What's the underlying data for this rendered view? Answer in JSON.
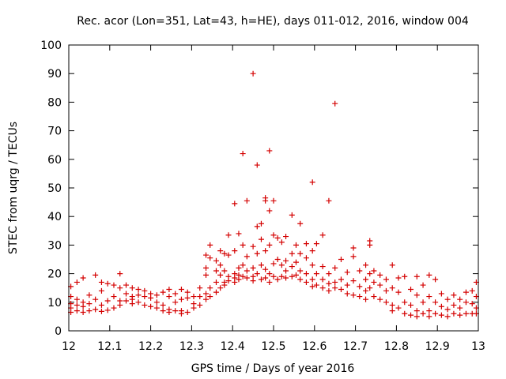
{
  "chart_data": {
    "type": "scatter",
    "title": "Rec. acor (Lon=351, Lat=43, h=HE), days 011-012, 2016, window 004",
    "xlabel": "GPS time / Days of year 2016",
    "ylabel": "STEC from uqrg / TECUs",
    "xlim": [
      12,
      13
    ],
    "ylim": [
      0,
      100
    ],
    "xticks": [
      "12",
      "12.1",
      "12.2",
      "12.3",
      "12.4",
      "12.5",
      "12.6",
      "12.7",
      "12.8",
      "12.9",
      "13"
    ],
    "yticks": [
      "0",
      "10",
      "20",
      "30",
      "40",
      "50",
      "60",
      "70",
      "80",
      "90",
      "100"
    ],
    "grid": false,
    "marker": "plus",
    "color": "#d40000",
    "series": [
      {
        "points": [
          [
            12.005,
            15.5
          ],
          [
            12.005,
            12.0
          ],
          [
            12.005,
            9.5
          ],
          [
            12.005,
            8.0
          ],
          [
            12.005,
            6.5
          ],
          [
            12.02,
            17.0
          ],
          [
            12.02,
            11.0
          ],
          [
            12.02,
            9.0
          ],
          [
            12.02,
            7.0
          ],
          [
            12.035,
            18.5
          ],
          [
            12.035,
            10.0
          ],
          [
            12.035,
            8.5
          ],
          [
            12.035,
            6.5
          ],
          [
            12.05,
            12.5
          ],
          [
            12.05,
            9.5
          ],
          [
            12.05,
            7.0
          ],
          [
            12.065,
            19.5
          ],
          [
            12.065,
            11.0
          ],
          [
            12.065,
            7.5
          ],
          [
            12.08,
            17.0
          ],
          [
            12.08,
            14.0
          ],
          [
            12.08,
            9.0
          ],
          [
            12.08,
            6.8
          ],
          [
            12.095,
            16.5
          ],
          [
            12.095,
            10.5
          ],
          [
            12.095,
            7.2
          ],
          [
            12.11,
            16.0
          ],
          [
            12.11,
            12.0
          ],
          [
            12.11,
            8.0
          ],
          [
            12.125,
            20.0
          ],
          [
            12.125,
            15.0
          ],
          [
            12.125,
            10.5
          ],
          [
            12.125,
            9.0
          ],
          [
            12.14,
            16.0
          ],
          [
            12.14,
            13.0
          ],
          [
            12.14,
            10.5
          ],
          [
            12.155,
            15.0
          ],
          [
            12.155,
            12.0
          ],
          [
            12.155,
            11.0
          ],
          [
            12.155,
            9.5
          ],
          [
            12.17,
            14.5
          ],
          [
            12.17,
            12.5
          ],
          [
            12.17,
            10.0
          ],
          [
            12.185,
            14.0
          ],
          [
            12.185,
            12.0
          ],
          [
            12.185,
            9.0
          ],
          [
            12.2,
            13.0
          ],
          [
            12.2,
            11.5
          ],
          [
            12.2,
            8.5
          ],
          [
            12.215,
            12.5
          ],
          [
            12.215,
            10.0
          ],
          [
            12.215,
            8.0
          ],
          [
            12.23,
            13.5
          ],
          [
            12.23,
            9.0
          ],
          [
            12.23,
            7.0
          ],
          [
            12.245,
            14.5
          ],
          [
            12.245,
            12.0
          ],
          [
            12.245,
            7.5
          ],
          [
            12.245,
            6.5
          ],
          [
            12.26,
            13.0
          ],
          [
            12.26,
            10.0
          ],
          [
            12.26,
            7.0
          ],
          [
            12.275,
            14.5
          ],
          [
            12.275,
            11.0
          ],
          [
            12.275,
            7.0
          ],
          [
            12.275,
            6.0
          ],
          [
            12.29,
            13.5
          ],
          [
            12.29,
            11.5
          ],
          [
            12.29,
            6.5
          ],
          [
            12.305,
            12.0
          ],
          [
            12.305,
            9.5
          ],
          [
            12.305,
            8.0
          ],
          [
            12.32,
            15.0
          ],
          [
            12.32,
            12.0
          ],
          [
            12.32,
            9.0
          ],
          [
            12.335,
            26.5
          ],
          [
            12.335,
            22.0
          ],
          [
            12.335,
            19.5
          ],
          [
            12.335,
            13.0
          ],
          [
            12.335,
            11.0
          ],
          [
            12.345,
            30.0
          ],
          [
            12.345,
            25.5
          ],
          [
            12.345,
            15.0
          ],
          [
            12.345,
            12.0
          ],
          [
            12.36,
            24.5
          ],
          [
            12.36,
            21.0
          ],
          [
            12.36,
            17.0
          ],
          [
            12.36,
            13.5
          ],
          [
            12.37,
            28.0
          ],
          [
            12.37,
            23.0
          ],
          [
            12.37,
            19.5
          ],
          [
            12.37,
            15.0
          ],
          [
            12.38,
            27.0
          ],
          [
            12.38,
            21.0
          ],
          [
            12.38,
            17.0
          ],
          [
            12.38,
            16.0
          ],
          [
            12.39,
            33.5
          ],
          [
            12.39,
            26.5
          ],
          [
            12.39,
            19.0
          ],
          [
            12.39,
            17.5
          ],
          [
            12.405,
            44.5
          ],
          [
            12.405,
            28.0
          ],
          [
            12.405,
            20.0
          ],
          [
            12.405,
            18.5
          ],
          [
            12.405,
            17.0
          ],
          [
            12.415,
            34.0
          ],
          [
            12.415,
            22.0
          ],
          [
            12.415,
            19.5
          ],
          [
            12.415,
            18.0
          ],
          [
            12.425,
            62.0
          ],
          [
            12.425,
            30.0
          ],
          [
            12.425,
            23.0
          ],
          [
            12.425,
            19.0
          ],
          [
            12.435,
            45.5
          ],
          [
            12.435,
            26.0
          ],
          [
            12.435,
            21.0
          ],
          [
            12.435,
            18.5
          ],
          [
            12.45,
            90.0
          ],
          [
            12.45,
            29.5
          ],
          [
            12.45,
            22.0
          ],
          [
            12.45,
            19.0
          ],
          [
            12.45,
            17.5
          ],
          [
            12.46,
            58.0
          ],
          [
            12.46,
            36.5
          ],
          [
            12.46,
            27.0
          ],
          [
            12.46,
            20.0
          ],
          [
            12.47,
            37.5
          ],
          [
            12.47,
            32.0
          ],
          [
            12.47,
            23.0
          ],
          [
            12.47,
            18.0
          ],
          [
            12.48,
            46.5
          ],
          [
            12.48,
            45.5
          ],
          [
            12.48,
            28.0
          ],
          [
            12.48,
            21.5
          ],
          [
            12.48,
            18.5
          ],
          [
            12.49,
            63.0
          ],
          [
            12.49,
            42.0
          ],
          [
            12.49,
            30.0
          ],
          [
            12.49,
            20.0
          ],
          [
            12.49,
            17.0
          ],
          [
            12.5,
            45.5
          ],
          [
            12.5,
            33.5
          ],
          [
            12.5,
            23.5
          ],
          [
            12.5,
            19.0
          ],
          [
            12.51,
            32.5
          ],
          [
            12.51,
            25.0
          ],
          [
            12.51,
            18.0
          ],
          [
            12.52,
            31.0
          ],
          [
            12.52,
            23.0
          ],
          [
            12.52,
            19.0
          ],
          [
            12.53,
            33.0
          ],
          [
            12.53,
            24.5
          ],
          [
            12.53,
            21.0
          ],
          [
            12.53,
            18.5
          ],
          [
            12.545,
            40.5
          ],
          [
            12.545,
            27.0
          ],
          [
            12.545,
            22.5
          ],
          [
            12.545,
            19.0
          ],
          [
            12.555,
            30.0
          ],
          [
            12.555,
            24.0
          ],
          [
            12.555,
            19.5
          ],
          [
            12.565,
            37.5
          ],
          [
            12.565,
            27.0
          ],
          [
            12.565,
            21.0
          ],
          [
            12.565,
            18.0
          ],
          [
            12.58,
            30.5
          ],
          [
            12.58,
            25.5
          ],
          [
            12.58,
            20.0
          ],
          [
            12.58,
            17.0
          ],
          [
            12.595,
            52.0
          ],
          [
            12.595,
            28.0
          ],
          [
            12.595,
            23.0
          ],
          [
            12.595,
            18.0
          ],
          [
            12.595,
            15.5
          ],
          [
            12.605,
            30.5
          ],
          [
            12.605,
            20.0
          ],
          [
            12.605,
            16.0
          ],
          [
            12.62,
            33.5
          ],
          [
            12.62,
            22.5
          ],
          [
            12.62,
            18.0
          ],
          [
            12.62,
            15.0
          ],
          [
            12.635,
            45.5
          ],
          [
            12.635,
            20.0
          ],
          [
            12.635,
            16.5
          ],
          [
            12.635,
            14.0
          ],
          [
            12.65,
            79.5
          ],
          [
            12.65,
            22.0
          ],
          [
            12.65,
            17.0
          ],
          [
            12.65,
            15.0
          ],
          [
            12.665,
            25.0
          ],
          [
            12.665,
            18.0
          ],
          [
            12.665,
            14.5
          ],
          [
            12.68,
            20.5
          ],
          [
            12.68,
            16.0
          ],
          [
            12.68,
            13.0
          ],
          [
            12.695,
            29.0
          ],
          [
            12.695,
            26.0
          ],
          [
            12.695,
            17.5
          ],
          [
            12.695,
            12.5
          ],
          [
            12.71,
            21.0
          ],
          [
            12.71,
            15.5
          ],
          [
            12.71,
            12.0
          ],
          [
            12.725,
            23.0
          ],
          [
            12.725,
            18.0
          ],
          [
            12.725,
            14.0
          ],
          [
            12.725,
            11.0
          ],
          [
            12.735,
            31.5
          ],
          [
            12.735,
            30.0
          ],
          [
            12.735,
            20.0
          ],
          [
            12.735,
            15.0
          ],
          [
            12.745,
            21.0
          ],
          [
            12.745,
            17.0
          ],
          [
            12.745,
            12.0
          ],
          [
            12.76,
            19.5
          ],
          [
            12.76,
            16.0
          ],
          [
            12.76,
            11.0
          ],
          [
            12.775,
            18.0
          ],
          [
            12.775,
            14.0
          ],
          [
            12.775,
            10.0
          ],
          [
            12.79,
            23.0
          ],
          [
            12.79,
            15.0
          ],
          [
            12.79,
            9.0
          ],
          [
            12.79,
            7.0
          ],
          [
            12.805,
            18.5
          ],
          [
            12.805,
            13.5
          ],
          [
            12.805,
            8.0
          ],
          [
            12.82,
            19.0
          ],
          [
            12.82,
            10.0
          ],
          [
            12.82,
            6.0
          ],
          [
            12.835,
            14.5
          ],
          [
            12.835,
            9.0
          ],
          [
            12.835,
            5.5
          ],
          [
            12.85,
            19.0
          ],
          [
            12.85,
            12.5
          ],
          [
            12.85,
            7.0
          ],
          [
            12.85,
            5.0
          ],
          [
            12.865,
            16.0
          ],
          [
            12.865,
            10.0
          ],
          [
            12.865,
            6.0
          ],
          [
            12.88,
            19.5
          ],
          [
            12.88,
            12.0
          ],
          [
            12.88,
            7.0
          ],
          [
            12.88,
            5.0
          ],
          [
            12.895,
            18.0
          ],
          [
            12.895,
            10.0
          ],
          [
            12.895,
            6.0
          ],
          [
            12.91,
            13.0
          ],
          [
            12.91,
            8.5
          ],
          [
            12.91,
            5.5
          ],
          [
            12.925,
            11.0
          ],
          [
            12.925,
            7.5
          ],
          [
            12.925,
            5.0
          ],
          [
            12.94,
            12.5
          ],
          [
            12.94,
            9.0
          ],
          [
            12.94,
            6.0
          ],
          [
            12.955,
            11.0
          ],
          [
            12.955,
            8.0
          ],
          [
            12.955,
            5.5
          ],
          [
            12.97,
            13.5
          ],
          [
            12.97,
            10.0
          ],
          [
            12.97,
            6.0
          ],
          [
            12.985,
            14.0
          ],
          [
            12.985,
            9.5
          ],
          [
            12.985,
            6.0
          ],
          [
            12.995,
            17.0
          ],
          [
            12.995,
            12.0
          ],
          [
            12.995,
            8.0
          ],
          [
            12.995,
            6.0
          ]
        ]
      }
    ]
  }
}
